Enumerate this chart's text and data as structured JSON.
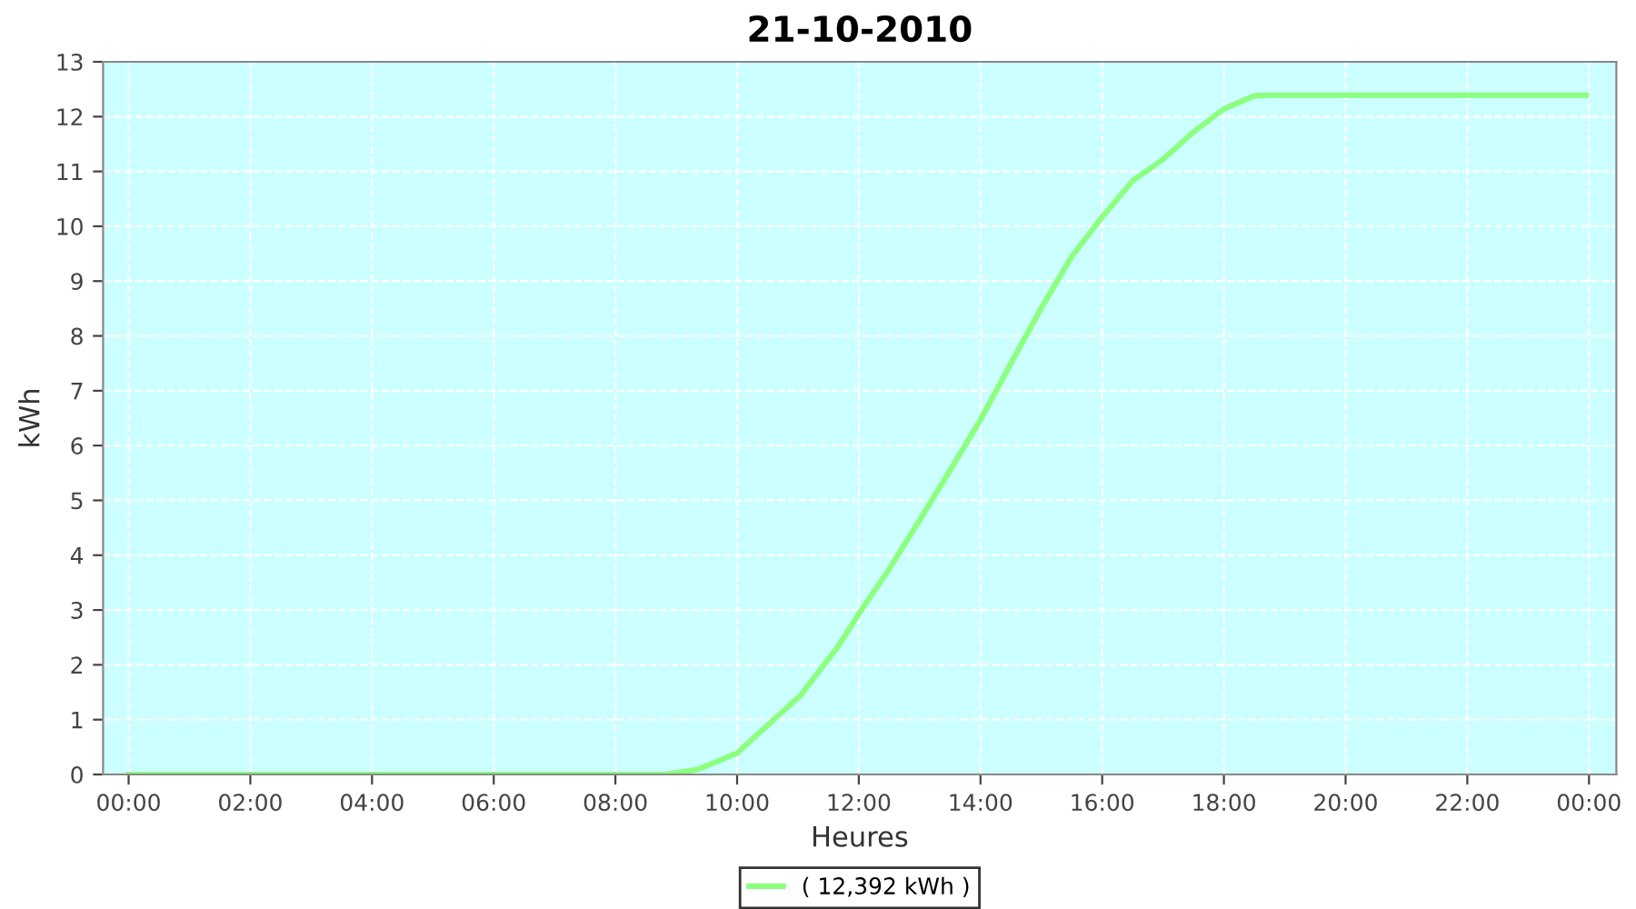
{
  "chart_data": {
    "type": "line",
    "title": "21-10-2010",
    "xlabel": "Heures",
    "ylabel": "kWh",
    "xlim": [
      -0.42,
      24.45
    ],
    "ylim": [
      0,
      13
    ],
    "xticks": [
      {
        "value": 0,
        "label": "00:00"
      },
      {
        "value": 2,
        "label": "02:00"
      },
      {
        "value": 4,
        "label": "04:00"
      },
      {
        "value": 6,
        "label": "06:00"
      },
      {
        "value": 8,
        "label": "08:00"
      },
      {
        "value": 10,
        "label": "10:00"
      },
      {
        "value": 12,
        "label": "12:00"
      },
      {
        "value": 14,
        "label": "14:00"
      },
      {
        "value": 16,
        "label": "16:00"
      },
      {
        "value": 18,
        "label": "18:00"
      },
      {
        "value": 20,
        "label": "20:00"
      },
      {
        "value": 22,
        "label": "22:00"
      },
      {
        "value": 24,
        "label": "00:00"
      }
    ],
    "yticks": [
      0,
      1,
      2,
      3,
      4,
      5,
      6,
      7,
      8,
      9,
      10,
      11,
      12,
      13
    ],
    "grid": true,
    "legend": "bottom",
    "marker": "none",
    "line_style": "solid",
    "series": [
      {
        "name": "( 12,392 kWh )",
        "color": "#8cff80",
        "x": [
          0,
          8.8,
          9.35,
          10,
          10.65,
          11.04,
          11.65,
          12,
          12.5,
          13,
          13.5,
          14,
          14.5,
          15,
          15.5,
          16,
          16.5,
          17,
          17.5,
          18,
          18.5,
          18.8,
          20,
          22,
          23.95
        ],
        "values": [
          0,
          0,
          0.09,
          0.39,
          1.05,
          1.44,
          2.32,
          2.93,
          3.75,
          4.64,
          5.55,
          6.47,
          7.5,
          8.51,
          9.45,
          10.17,
          10.83,
          11.22,
          11.72,
          12.14,
          12.38,
          12.39,
          12.39,
          12.39,
          12.39
        ]
      }
    ]
  }
}
